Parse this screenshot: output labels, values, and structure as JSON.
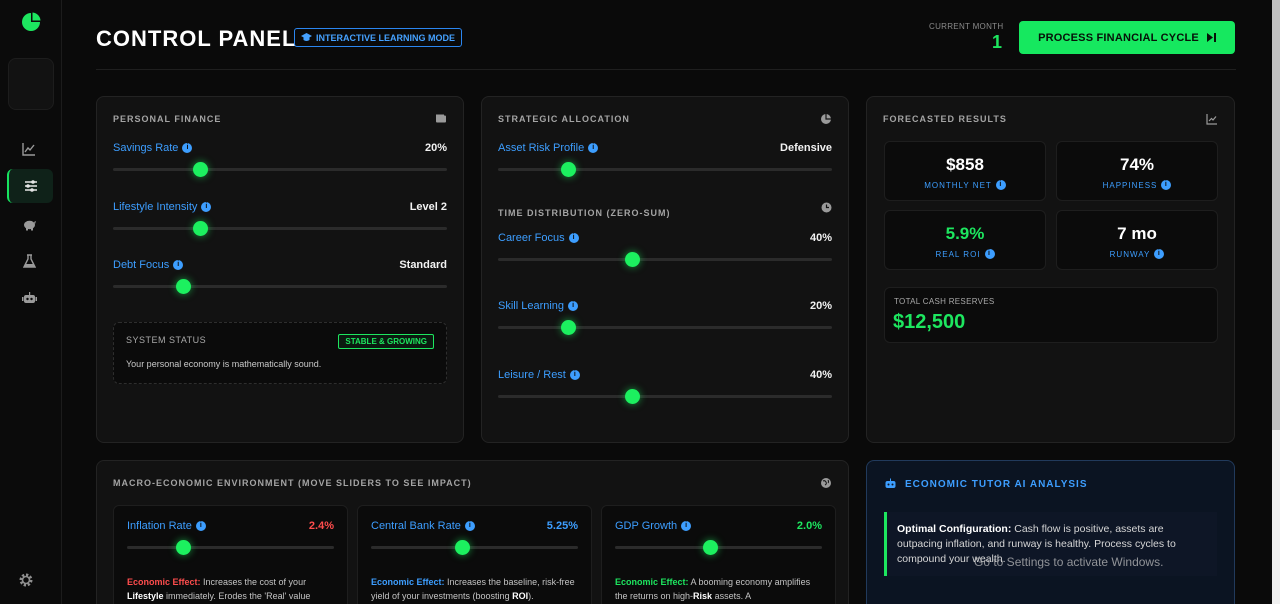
{
  "header": {
    "title": "CONTROL PANEL",
    "mode_badge": "INTERACTIVE LEARNING MODE",
    "current_month_label": "CURRENT MONTH",
    "current_month_value": "1",
    "process_button": "PROCESS FINANCIAL CYCLE"
  },
  "personal": {
    "title": "PERSONAL FINANCE",
    "controls": [
      {
        "label": "Savings Rate",
        "value": "20%",
        "level": 0.26
      },
      {
        "label": "Lifestyle Intensity",
        "value": "Level 2",
        "level": 0.26
      },
      {
        "label": "Debt Focus",
        "value": "Standard",
        "level": 0.21
      }
    ],
    "status_title": "SYSTEM STATUS",
    "status_badge": "STABLE & GROWING",
    "status_text": "Your personal economy is mathematically sound."
  },
  "strategic": {
    "title": "STRATEGIC ALLOCATION",
    "risk_label": "Asset Risk Profile",
    "risk_value": "Defensive",
    "risk_level": 0.21,
    "time_title": "TIME DISTRIBUTION (ZERO-SUM)",
    "time_controls": [
      {
        "label": "Career Focus",
        "value": "40%",
        "level": 0.4
      },
      {
        "label": "Skill Learning",
        "value": "20%",
        "level": 0.21
      },
      {
        "label": "Leisure / Rest",
        "value": "40%",
        "level": 0.4
      }
    ]
  },
  "forecast": {
    "title": "FORECASTED RESULTS",
    "metrics": [
      {
        "value": "$858",
        "label": "MONTHLY NET"
      },
      {
        "value": "74%",
        "label": "HAPPINESS"
      },
      {
        "value": "5.9%",
        "label": "REAL ROI"
      },
      {
        "value": "7 mo",
        "label": "RUNWAY"
      }
    ],
    "reserves_label": "TOTAL CASH RESERVES",
    "reserves_value": "$12,500"
  },
  "macro": {
    "title": "MACRO-ECONOMIC ENVIRONMENT (MOVE SLIDERS TO SEE IMPACT)",
    "cards": [
      {
        "label": "Inflation Rate",
        "value": "2.4%",
        "level": 0.27,
        "effect_label": "Economic Effect:",
        "effect_text_1": " Increases the cost of your ",
        "effect_bold": "Lifestyle",
        "effect_text_2": " immediately. Erodes the 'Real' value"
      },
      {
        "label": "Central Bank Rate",
        "value": "5.25%",
        "level": 0.44,
        "effect_label": "Economic Effect:",
        "effect_text_1": " Increases the baseline, risk-free yield of your investments (boosting ",
        "effect_bold": "ROI",
        "effect_text_2": ")."
      },
      {
        "label": "GDP Growth",
        "value": "2.0%",
        "level": 0.46,
        "effect_label": "Economic Effect:",
        "effect_text_1": " A booming economy amplifies the returns on high-",
        "effect_bold": "Risk",
        "effect_text_2": " assets. A"
      }
    ]
  },
  "tutor": {
    "title": "ECONOMIC TUTOR AI ANALYSIS",
    "bold": "Optimal Configuration:",
    "text": " Cash flow is positive, assets are outpacing inflation, and runway is healthy. Process cycles to compound your wealth."
  },
  "watermark": "Go to Settings to activate Windows.",
  "colors": {
    "accent_green": "#16e85f",
    "accent_blue": "#3d9eff",
    "danger": "#ff4d4d"
  }
}
